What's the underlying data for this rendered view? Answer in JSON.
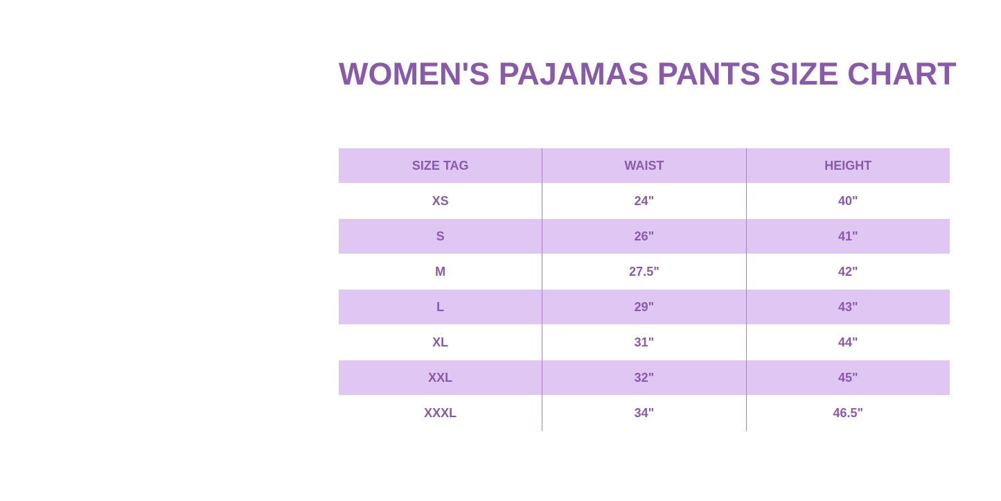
{
  "title": "WOMEN'S PAJAMAS PANTS SIZE CHART",
  "colors": {
    "accent": "#8a5aaa",
    "row_shade": "#e0c6f3"
  },
  "table": {
    "headers": [
      "SIZE TAG",
      "WAIST",
      "HEIGHT"
    ],
    "rows": [
      [
        "XS",
        "24\"",
        "40\""
      ],
      [
        "S",
        "26\"",
        "41\""
      ],
      [
        "M",
        "27.5\"",
        "42\""
      ],
      [
        "L",
        "29\"",
        "43\""
      ],
      [
        "XL",
        "31\"",
        "44\""
      ],
      [
        "XXL",
        "32\"",
        "45\""
      ],
      [
        "XXXL",
        "34\"",
        "46.5\""
      ]
    ]
  }
}
